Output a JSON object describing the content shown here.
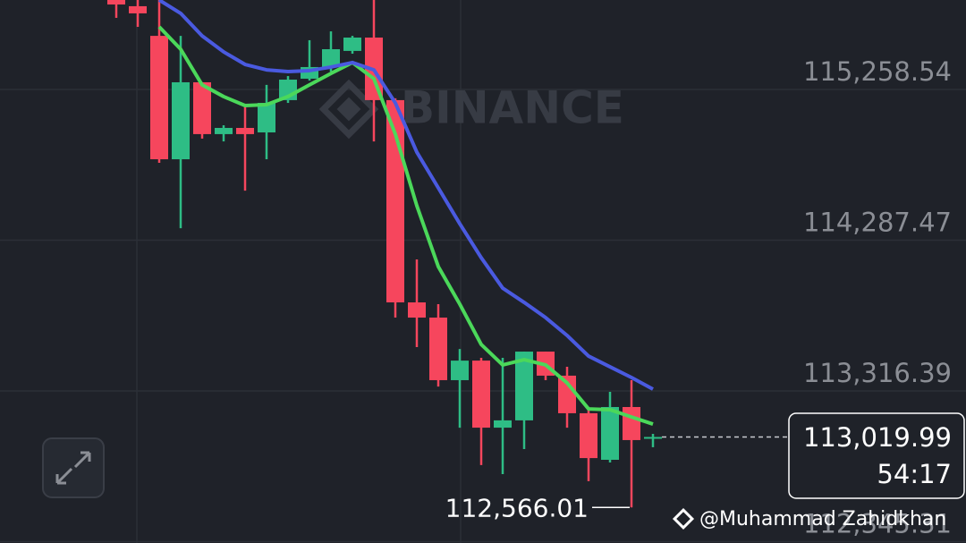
{
  "chart_data": {
    "type": "candlestick",
    "ylim": [
      112337,
      115835
    ],
    "yticks": [
      {
        "value": 115258.54,
        "label": "115,258.54"
      },
      {
        "value": 114287.47,
        "label": "114,287.47"
      },
      {
        "value": 113316.39,
        "label": "113,316.39"
      },
      {
        "value": 112345.31,
        "label": "112,345.31"
      }
    ],
    "grid": true,
    "up_color": "#2ebd85",
    "down_color": "#f6465d",
    "open": [
      115835,
      115795,
      115604,
      114809,
      115305,
      114971,
      115011,
      114982,
      115190,
      115328,
      115403,
      115507,
      115593,
      115190,
      113887,
      113789,
      113386,
      113512,
      113080,
      113127,
      113570,
      113415,
      113173,
      112873,
      113213,
      113011
    ],
    "high": [
      115835,
      115835,
      115835,
      115604,
      115305,
      115028,
      115155,
      115288,
      115345,
      115576,
      115633,
      115604,
      115835,
      115202,
      114164,
      113876,
      113587,
      113530,
      113530,
      113570,
      113570,
      113472,
      113213,
      113311,
      113386,
      113040
    ],
    "low": [
      115720,
      115662,
      114786,
      114365,
      114942,
      114924,
      114607,
      114809,
      115172,
      115316,
      115374,
      115489,
      114924,
      113789,
      113599,
      113345,
      113080,
      112839,
      112781,
      112942,
      113386,
      113080,
      112735,
      112856,
      112566.01,
      112954
    ],
    "close": [
      115806,
      115749,
      114809,
      115305,
      114971,
      115011,
      114971,
      115172,
      115322,
      115403,
      115518,
      115593,
      115190,
      113887,
      113789,
      113386,
      113512,
      113080,
      113127,
      113570,
      113415,
      113173,
      112884,
      113213,
      113000,
      113019.99
    ],
    "series": [
      {
        "color": "#4bd85a",
        "values": [
          null,
          null,
          115662,
          115518,
          115288,
          115213,
          115155,
          115161,
          115213,
          115288,
          115362,
          115432,
          115328,
          114971,
          114510,
          114118,
          113876,
          113616,
          113484,
          113518,
          113484,
          113368,
          113201,
          113196,
          113149,
          113103
        ]
      },
      {
        "color": "#4a5ae0",
        "values": [
          null,
          null,
          115835,
          115749,
          115604,
          115501,
          115420,
          115385,
          115374,
          115380,
          115403,
          115432,
          115385,
          115172,
          114855,
          114625,
          114394,
          114175,
          113979,
          113887,
          113789,
          113674,
          113541,
          113472,
          113403,
          113328
        ]
      }
    ],
    "last_price": {
      "value": 113019.99,
      "label": "113,019.99"
    },
    "countdown": "54:17",
    "low_label": {
      "value": 112566.01,
      "label": "112,566.01"
    }
  },
  "watermark": "BINANCE",
  "attribution": "@Muhammad Zahidkhan"
}
